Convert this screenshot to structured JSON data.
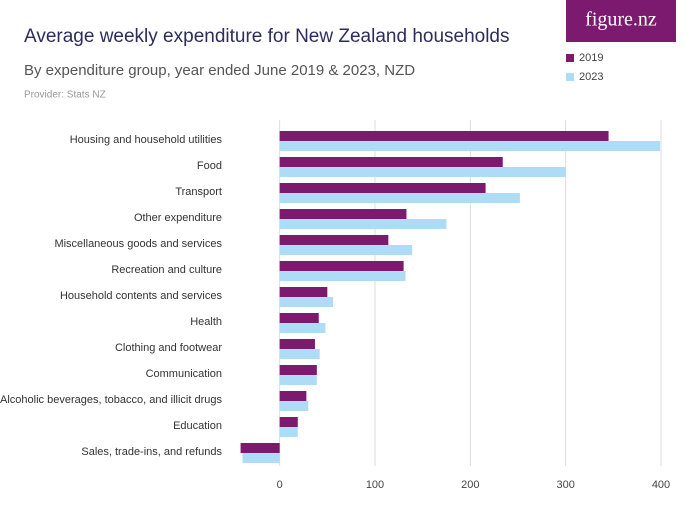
{
  "logo": "figure.nz",
  "chart_data": {
    "type": "hbar",
    "title": "Average weekly expenditure for New Zealand households",
    "subtitle": "By expenditure group, year ended June 2019 & 2023, NZD",
    "provider": "Provider: Stats NZ",
    "categories": [
      "Housing and household utilities",
      "Food",
      "Transport",
      "Other expenditure",
      "Miscellaneous goods and services",
      "Recreation and culture",
      "Household contents and services",
      "Health",
      "Clothing and footwear",
      "Communication",
      "Alcoholic beverages, tobacco, and illicit drugs",
      "Education",
      "Sales, trade-ins, and refunds"
    ],
    "series": [
      {
        "name": "2019",
        "color": "#7b1a6e",
        "values": [
          345,
          234,
          216,
          133,
          114,
          130,
          50,
          41,
          37,
          39,
          28,
          19,
          -41
        ]
      },
      {
        "name": "2023",
        "color": "#aedcf7",
        "values": [
          399,
          300,
          252,
          175,
          139,
          132,
          56,
          48,
          42,
          39,
          30,
          19,
          -39
        ]
      }
    ],
    "xlim": [
      -50,
      400
    ],
    "xticks": [
      0,
      100,
      200,
      300,
      400
    ],
    "grid": true,
    "legend": "top-right"
  }
}
